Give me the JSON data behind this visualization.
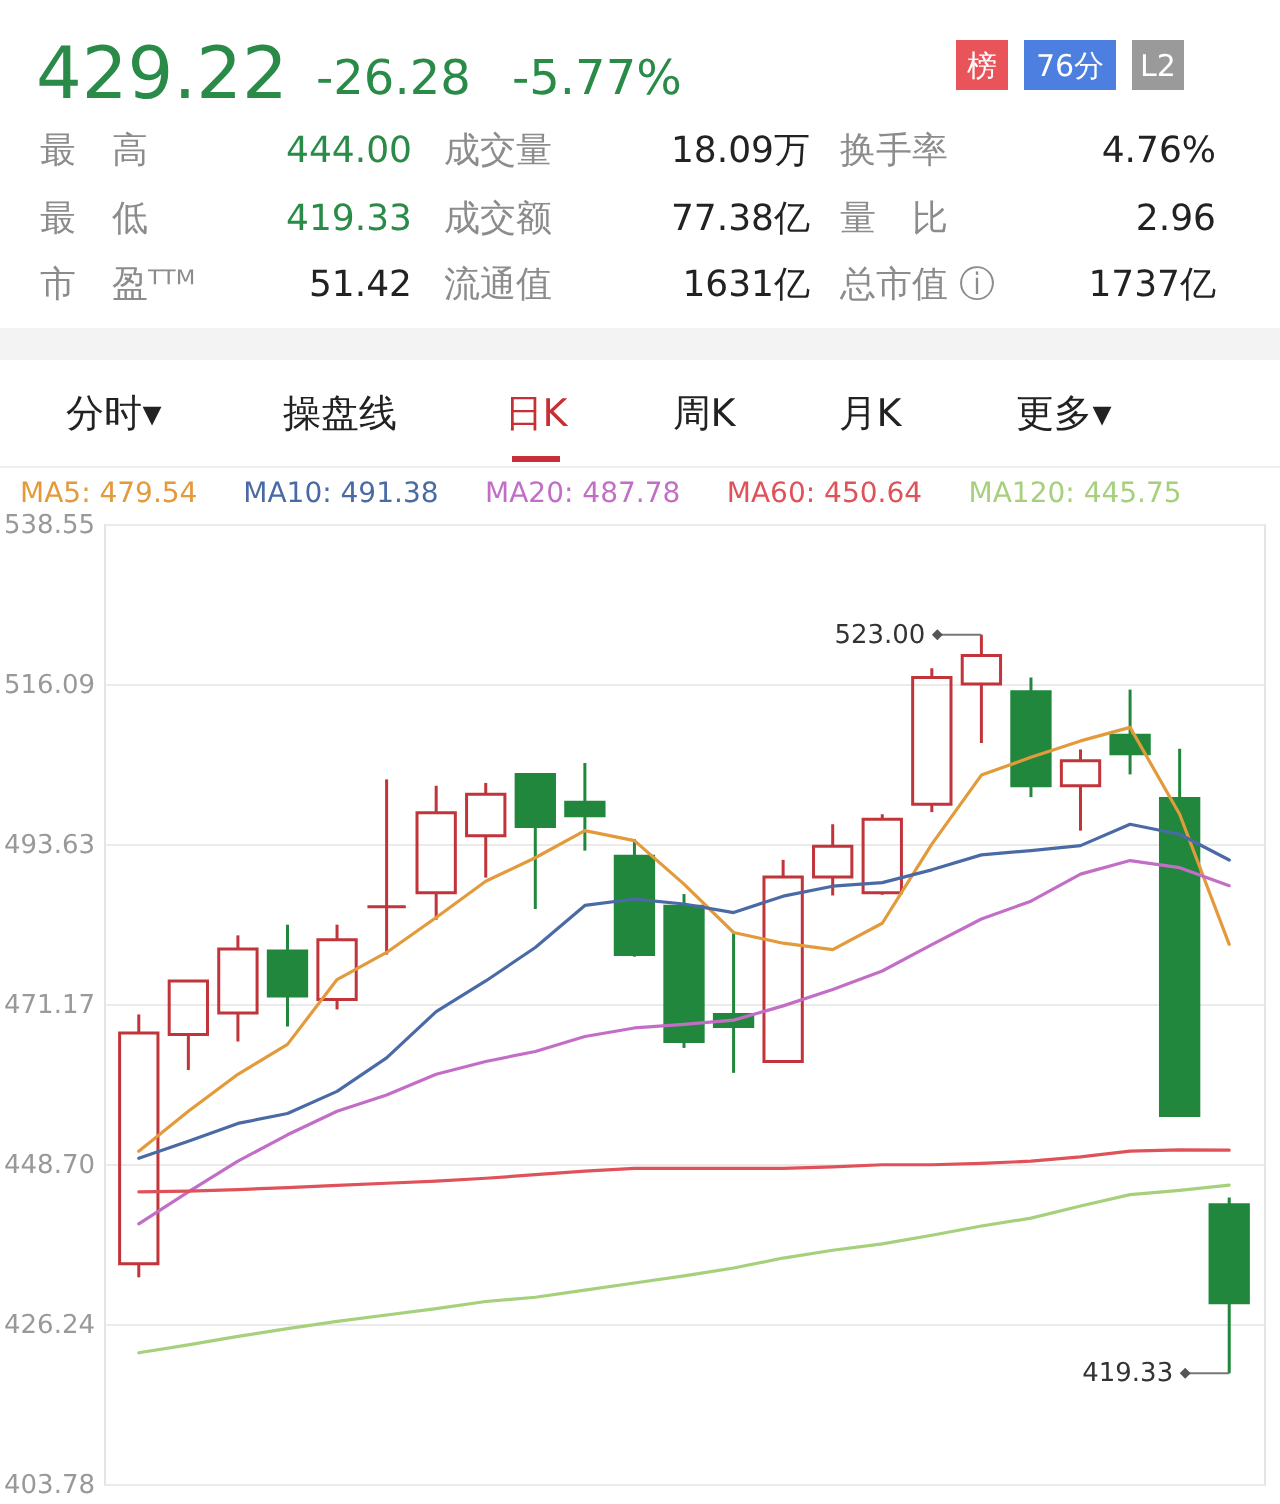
{
  "chart_data": [
    {
      "type": "other",
      "title": "429.22",
      "annotations": [
        "-26.28",
        "-5.77%",
        "榜",
        "76分",
        "L2",
        "最　高",
        "444.00",
        "成交量",
        "18.09万",
        "换手率",
        "4.76%",
        "最　低",
        "419.33",
        "成交额",
        "77.38亿",
        "量　比",
        "2.96",
        "市　盈ᵀᵀᴹ",
        "51.42",
        "流通值",
        "1631亿",
        "总市值 ⓘ",
        "1737亿"
      ]
    },
    {
      "type": "other",
      "annotations": [
        "分时▾",
        "操盘线",
        "日K",
        "周K",
        "月K",
        "更多▾"
      ]
    },
    {
      "type": "candlestick",
      "categories": [
        null,
        null,
        null,
        null,
        null,
        null,
        null,
        null,
        null,
        null,
        null,
        null,
        null,
        null,
        null,
        null,
        null,
        null,
        null,
        null,
        null,
        null,
        null
      ],
      "ohlc": [
        [
          434.7,
          469.7,
          432.8,
          467.1
        ],
        [
          466.9,
          474.4,
          461.9,
          474.4
        ],
        [
          469.9,
          480.8,
          465.9,
          478.9
        ],
        [
          478.6,
          482.3,
          468.0,
          472.3
        ],
        [
          471.8,
          482.3,
          470.4,
          480.2
        ],
        [
          484.8,
          502.7,
          478.1,
          484.8
        ],
        [
          486.8,
          501.8,
          483.0,
          498.0
        ],
        [
          494.8,
          502.2,
          488.9,
          500.6
        ],
        [
          503.4,
          503.4,
          484.5,
          496.1
        ],
        [
          499.5,
          505.0,
          492.7,
          497.6
        ],
        [
          491.9,
          494.3,
          477.8,
          478.1
        ],
        [
          484.9,
          486.6,
          465.0,
          465.9
        ],
        [
          469.7,
          481.1,
          461.5,
          468.0
        ],
        [
          463.1,
          491.4,
          463.1,
          489.0
        ],
        [
          489.0,
          496.4,
          486.4,
          493.3
        ],
        [
          486.8,
          497.8,
          486.5,
          497.1
        ],
        [
          499.2,
          518.3,
          498.1,
          517.0
        ],
        [
          516.1,
          523.0,
          507.8,
          520.1
        ],
        [
          515.0,
          517.0,
          500.2,
          501.8
        ],
        [
          501.8,
          506.9,
          495.5,
          505.3
        ],
        [
          508.9,
          515.3,
          503.4,
          506.3
        ],
        [
          500.0,
          507.0,
          455.5,
          455.5
        ],
        [
          443.0,
          444.0,
          419.33,
          429.22
        ]
      ],
      "colors": [
        "#c0343a",
        "#c0343a",
        "#c0343a",
        "#21873c",
        "#c0343a",
        "#c0343a",
        "#c0343a",
        "#c0343a",
        "#21873c",
        "#21873c",
        "#21873c",
        "#21873c",
        "#21873c",
        "#c0343a",
        "#c0343a",
        "#c0343a",
        "#c0343a",
        "#c0343a",
        "#21873c",
        "#c0343a",
        "#21873c",
        "#21873c",
        "#21873c"
      ],
      "series": [
        {
          "name": "MA5: 479.54",
          "type": "line",
          "color": "#e39a3b",
          "values": [
            450.5,
            456.1,
            461.3,
            465.5,
            474.6,
            478.4,
            483.3,
            488.4,
            491.7,
            495.5,
            494.1,
            488.0,
            481.2,
            479.7,
            478.8,
            482.5,
            493.6,
            503.3,
            505.8,
            508.1,
            510.0,
            497.8,
            479.54
          ]
        },
        {
          "name": "MA10: 491.38",
          "type": "line",
          "color": "#4a6aa5",
          "values": [
            449.5,
            451.9,
            454.4,
            455.8,
            458.9,
            463.6,
            470.1,
            474.4,
            479.1,
            485.0,
            485.9,
            485.2,
            484.0,
            486.3,
            487.7,
            488.2,
            490.0,
            492.1,
            492.7,
            493.4,
            496.4,
            495.0,
            491.38
          ]
        },
        {
          "name": "MA20: 487.78",
          "type": "line",
          "color": "#c26ec7",
          "values": [
            440.3,
            444.8,
            449.1,
            452.8,
            456.1,
            458.4,
            461.3,
            463.1,
            464.5,
            466.6,
            467.8,
            468.3,
            468.9,
            470.9,
            473.2,
            475.8,
            479.5,
            483.1,
            485.6,
            489.4,
            491.3,
            490.3,
            487.78
          ]
        },
        {
          "name": "MA60: 450.64",
          "type": "line",
          "color": "#e0525a",
          "values": [
            444.8,
            444.9,
            445.1,
            445.4,
            445.7,
            446.0,
            446.3,
            446.7,
            447.2,
            447.7,
            448.1,
            448.1,
            448.1,
            448.1,
            448.3,
            448.6,
            448.6,
            448.8,
            449.1,
            449.7,
            450.5,
            450.7,
            450.64
          ]
        },
        {
          "name": "MA120: 445.75",
          "type": "line",
          "color": "#a6d07c",
          "values": [
            422.2,
            423.3,
            424.5,
            425.6,
            426.6,
            427.5,
            428.4,
            429.4,
            430.0,
            431.0,
            432.0,
            433.0,
            434.1,
            435.5,
            436.6,
            437.5,
            438.7,
            440.0,
            441.1,
            442.8,
            444.4,
            445.0,
            445.75
          ]
        }
      ],
      "ylim": [
        403.78,
        538.55
      ],
      "yticks": [
        403.78,
        426.24,
        {
          "value": 448.7,
          "label": "448.70"
        },
        471.17,
        493.63,
        516.09,
        538.55
      ],
      "grid": "y",
      "legend": "top left",
      "tick_labels": "y",
      "annotations": [
        "523.00",
        "419.33"
      ]
    }
  ]
}
